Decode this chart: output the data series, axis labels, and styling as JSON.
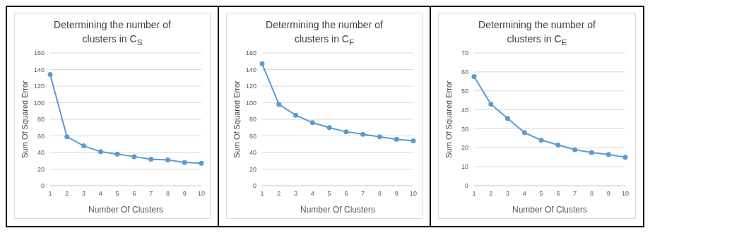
{
  "chart_data": [
    {
      "type": "line",
      "title": "Determining the number of clusters in C$_{S}$",
      "xlabel": "Number Of Clusters",
      "ylabel": "Sum Of Squared Error",
      "categories": [
        "1",
        "2",
        "3",
        "4",
        "5",
        "6",
        "7",
        "8",
        "9",
        "10"
      ],
      "series": [
        {
          "color": "#5b9bd5",
          "values": [
            134,
            59,
            48,
            41,
            38,
            35,
            32,
            31,
            28,
            27
          ]
        }
      ],
      "ylim": [
        0,
        160
      ],
      "yticks": [
        0,
        20,
        40,
        60,
        80,
        100,
        120,
        140,
        160
      ],
      "grid": "y",
      "marker": "circle"
    },
    {
      "type": "line",
      "title": "Determining the number of clusters in C$_{F}$",
      "xlabel": "Number Of Clusters",
      "ylabel": "Sum Of Squared Error",
      "categories": [
        "1",
        "2",
        "3",
        "4",
        "5",
        "6",
        "7",
        "8",
        "9",
        "10"
      ],
      "series": [
        {
          "color": "#5b9bd5",
          "values": [
            147,
            98,
            85,
            76,
            70,
            65,
            62,
            59,
            56,
            54
          ]
        }
      ],
      "ylim": [
        0,
        160
      ],
      "yticks": [
        0,
        20,
        40,
        60,
        80,
        100,
        120,
        140,
        160
      ],
      "grid": "y",
      "marker": "circle"
    },
    {
      "type": "line",
      "title": "Determining the number of clusters in C$_{E}$",
      "xlabel": "Number Of Clusters",
      "ylabel": "Sum Of Squared Error",
      "categories": [
        "1",
        "2",
        "3",
        "4",
        "5",
        "6",
        "7",
        "8",
        "9",
        "10"
      ],
      "series": [
        {
          "color": "#5b9bd5",
          "values": [
            57.5,
            43,
            35.5,
            28,
            24,
            21.5,
            19,
            17.5,
            16.5,
            15
          ]
        }
      ],
      "ylim": [
        0,
        70
      ],
      "yticks": [
        0,
        10,
        20,
        30,
        40,
        50,
        60,
        70
      ],
      "grid": "y",
      "marker": "circle"
    }
  ]
}
